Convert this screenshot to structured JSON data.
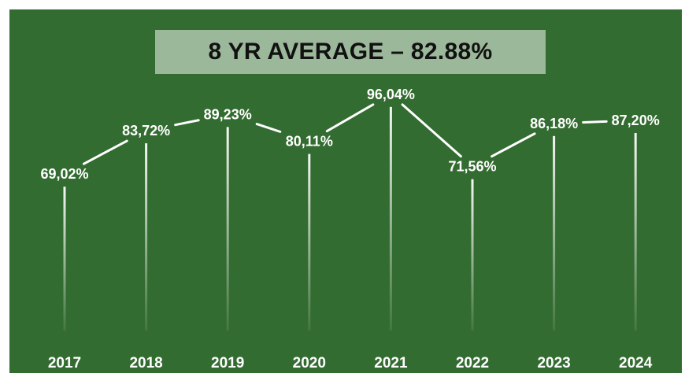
{
  "chart_data": {
    "type": "line",
    "title": "8 YR AVERAGE – 82.88%",
    "categories": [
      "2017",
      "2018",
      "2019",
      "2020",
      "2021",
      "2022",
      "2023",
      "2024"
    ],
    "values": [
      69.02,
      83.72,
      89.23,
      80.11,
      96.04,
      71.56,
      86.18,
      87.2
    ],
    "value_labels": [
      "69,02%",
      "83,72%",
      "89,23%",
      "80,11%",
      "96,04%",
      "71,56%",
      "86,18%",
      "87,20%"
    ],
    "xlabel": "",
    "ylabel": "",
    "grid": false,
    "legend": "none"
  },
  "colors": {
    "background": "#336c30",
    "banner": "#9cb89a",
    "text": "#ffffff",
    "line": "#ffffff"
  }
}
